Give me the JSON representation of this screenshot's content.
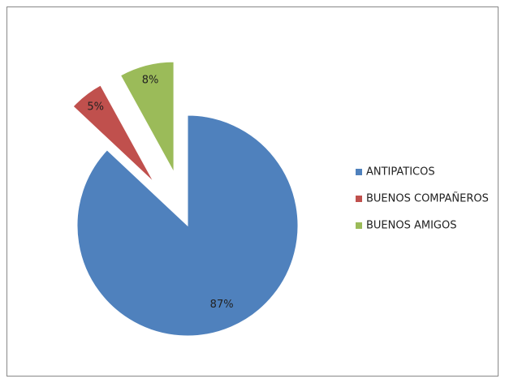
{
  "chart_data": {
    "type": "pie",
    "categories": [
      "ANTIPATICOS",
      "BUENOS COMPAÑEROS",
      "BUENOS AMIGOS"
    ],
    "values": [
      87,
      5,
      8
    ],
    "value_labels": [
      "87%",
      "5%",
      "8%"
    ],
    "colors": [
      "#4f81bd",
      "#c0504d",
      "#9bbb59"
    ],
    "legend": "right"
  }
}
